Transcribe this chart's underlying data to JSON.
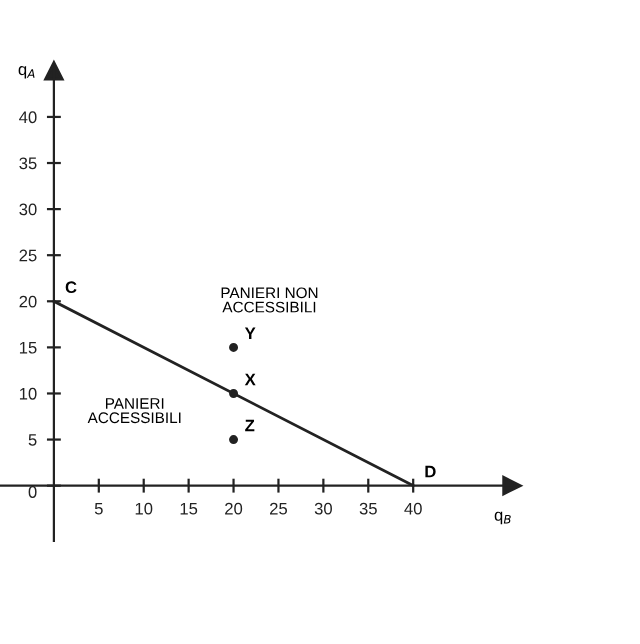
{
  "chart_data": {
    "type": "line",
    "xlabel": "q$_{B}$",
    "ylabel": "q$_{A}$",
    "xlim": [
      -6,
      51
    ],
    "ylim": [
      -6,
      45
    ],
    "xticks": [
      5,
      10,
      15,
      20,
      25,
      30,
      35,
      40
    ],
    "yticks": [
      0,
      5,
      10,
      15,
      20,
      25,
      30,
      35,
      40
    ],
    "grid": false,
    "legend": false,
    "series": [
      {
        "color": "#222222",
        "x": [
          0,
          40
        ],
        "values": [
          20,
          0
        ],
        "marker": "none"
      },
      {
        "type": "scatter",
        "color": "#222222",
        "x": [
          20,
          20,
          20
        ],
        "values": [
          15,
          10,
          5
        ],
        "marker": "circle"
      }
    ],
    "annotations": [
      {
        "text": "C",
        "x": 0,
        "y": 20
      },
      {
        "text": "D",
        "x": 40,
        "y": 0
      },
      {
        "text": "Y",
        "x": 20,
        "y": 15
      },
      {
        "text": "X",
        "x": 20,
        "y": 10
      },
      {
        "text": "Z",
        "x": 20,
        "y": 5
      },
      "PANIERI NON\nACCESSIBILI",
      "PANIERI\nACCESSIBILI"
    ]
  }
}
